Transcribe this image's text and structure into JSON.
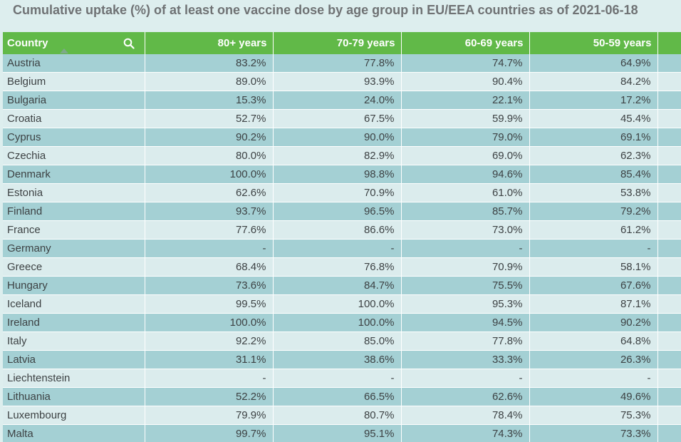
{
  "title": "Cumulative uptake (%) of at least one vaccine dose by age group in EU/EEA countries as of 2021-06-18",
  "colors": {
    "header_bg": "#61b948",
    "row_dark": "#a4d0d4",
    "row_light": "#dbeced",
    "title_text": "#6f7274"
  },
  "icons": {
    "search": "search-icon",
    "sort": "sort-ascending-icon"
  },
  "chart_data": {
    "type": "table",
    "title": "Cumulative uptake (%) of at least one vaccine dose by age group in EU/EEA countries as of 2021-06-18",
    "columns": [
      "Country",
      "80+ years",
      "70-79 years",
      "60-69 years",
      "50-59 years"
    ],
    "rows": [
      [
        "Austria",
        "83.2%",
        "77.8%",
        "74.7%",
        "64.9%"
      ],
      [
        "Belgium",
        "89.0%",
        "93.9%",
        "90.4%",
        "84.2%"
      ],
      [
        "Bulgaria",
        "15.3%",
        "24.0%",
        "22.1%",
        "17.2%"
      ],
      [
        "Croatia",
        "52.7%",
        "67.5%",
        "59.9%",
        "45.4%"
      ],
      [
        "Cyprus",
        "90.2%",
        "90.0%",
        "79.0%",
        "69.1%"
      ],
      [
        "Czechia",
        "80.0%",
        "82.9%",
        "69.0%",
        "62.3%"
      ],
      [
        "Denmark",
        "100.0%",
        "98.8%",
        "94.6%",
        "85.4%"
      ],
      [
        "Estonia",
        "62.6%",
        "70.9%",
        "61.0%",
        "53.8%"
      ],
      [
        "Finland",
        "93.7%",
        "96.5%",
        "85.7%",
        "79.2%"
      ],
      [
        "France",
        "77.6%",
        "86.6%",
        "73.0%",
        "61.2%"
      ],
      [
        "Germany",
        "-",
        "-",
        "-",
        "-"
      ],
      [
        "Greece",
        "68.4%",
        "76.8%",
        "70.9%",
        "58.1%"
      ],
      [
        "Hungary",
        "73.6%",
        "84.7%",
        "75.5%",
        "67.6%"
      ],
      [
        "Iceland",
        "99.5%",
        "100.0%",
        "95.3%",
        "87.1%"
      ],
      [
        "Ireland",
        "100.0%",
        "100.0%",
        "94.5%",
        "90.2%"
      ],
      [
        "Italy",
        "92.2%",
        "85.0%",
        "77.8%",
        "64.8%"
      ],
      [
        "Latvia",
        "31.1%",
        "38.6%",
        "33.3%",
        "26.3%"
      ],
      [
        "Liechtenstein",
        "-",
        "-",
        "-",
        "-"
      ],
      [
        "Lithuania",
        "52.2%",
        "66.5%",
        "62.6%",
        "49.6%"
      ],
      [
        "Luxembourg",
        "79.9%",
        "80.7%",
        "78.4%",
        "75.3%"
      ],
      [
        "Malta",
        "99.7%",
        "95.1%",
        "74.3%",
        "73.3%"
      ]
    ],
    "sort": {
      "column": "Country",
      "order": "ascending"
    }
  }
}
